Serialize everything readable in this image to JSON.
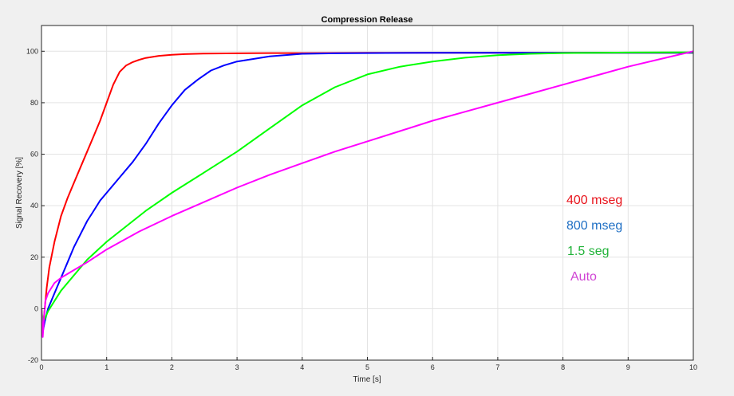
{
  "chart_data": {
    "type": "line",
    "title": "Compression Release",
    "xlabel": "Time [s]",
    "ylabel": "Signal Recovery [%]",
    "xlim": [
      0,
      10
    ],
    "ylim": [
      -20,
      110
    ],
    "xticks": [
      0,
      1,
      2,
      3,
      4,
      5,
      6,
      7,
      8,
      9,
      10
    ],
    "yticks": [
      -20,
      0,
      20,
      40,
      60,
      80,
      100
    ],
    "xtick_labels": [
      "0",
      "1",
      "2",
      "3",
      "4",
      "5",
      "6",
      "7",
      "8",
      "9",
      "10"
    ],
    "ytick_labels": [
      "-20",
      "0",
      "20",
      "40",
      "60",
      "80",
      "100"
    ],
    "grid": true,
    "legend_position": "right, inside plot area (text labels)",
    "series": [
      {
        "name": "400 mseg",
        "color": "#ff0000",
        "label_color": "#e8141c",
        "x": [
          0,
          0.02,
          0.05,
          0.08,
          0.12,
          0.2,
          0.3,
          0.4,
          0.5,
          0.6,
          0.7,
          0.8,
          0.9,
          1.0,
          1.1,
          1.2,
          1.3,
          1.4,
          1.5,
          1.6,
          1.8,
          2.0,
          2.2,
          2.5,
          3.0,
          3.5,
          4.0,
          5.0,
          6.0,
          7.0,
          8.0,
          9.0,
          10.0
        ],
        "y": [
          0,
          -8,
          0,
          8,
          16,
          26,
          36,
          43,
          49,
          55,
          61,
          67,
          73,
          80,
          87,
          92,
          94.5,
          95.8,
          96.7,
          97.4,
          98.2,
          98.6,
          98.9,
          99.1,
          99.2,
          99.3,
          99.3,
          99.4,
          99.4,
          99.4,
          99.4,
          99.4,
          99.4
        ]
      },
      {
        "name": "800 mseg",
        "color": "#0000ff",
        "label_color": "#1f6fc4",
        "x": [
          0,
          0.02,
          0.05,
          0.1,
          0.2,
          0.3,
          0.4,
          0.5,
          0.6,
          0.7,
          0.8,
          0.9,
          1.0,
          1.2,
          1.4,
          1.6,
          1.8,
          2.0,
          2.2,
          2.4,
          2.6,
          2.8,
          3.0,
          3.5,
          4.0,
          4.5,
          5.0,
          6.0,
          7.0,
          8.0,
          9.0,
          10.0
        ],
        "y": [
          0,
          -9,
          -5,
          0,
          6,
          12,
          18,
          24,
          29,
          34,
          38,
          42,
          45,
          51,
          57,
          64,
          72,
          79,
          85,
          89,
          92.5,
          94.5,
          96,
          98,
          99,
          99.2,
          99.3,
          99.4,
          99.4,
          99.4,
          99.4,
          99.4
        ]
      },
      {
        "name": "1.5 seg",
        "color": "#00ff00",
        "label_color": "#22b33a",
        "x": [
          0,
          0.02,
          0.05,
          0.1,
          0.2,
          0.3,
          0.5,
          0.7,
          1.0,
          1.3,
          1.6,
          2.0,
          2.5,
          3.0,
          3.5,
          4.0,
          4.5,
          5.0,
          5.5,
          6.0,
          6.5,
          7.0,
          7.5,
          8.0,
          9.0,
          10.0
        ],
        "y": [
          0,
          -5,
          -4,
          -1,
          3,
          7,
          13,
          19,
          26,
          32,
          38,
          45,
          53,
          61,
          70,
          79,
          86,
          91,
          94,
          96,
          97.5,
          98.5,
          99,
          99.3,
          99.5,
          99.6
        ]
      },
      {
        "name": "Auto",
        "color": "#ff00ff",
        "label_color": "#d045d4",
        "x": [
          0,
          0.02,
          0.04,
          0.06,
          0.1,
          0.15,
          0.2,
          0.3,
          0.5,
          0.7,
          1.0,
          1.5,
          2.0,
          2.5,
          3.0,
          3.5,
          4.0,
          4.5,
          5.0,
          5.5,
          6.0,
          6.5,
          7.0,
          7.5,
          8.0,
          8.5,
          9.0,
          9.5,
          10.0
        ],
        "y": [
          0,
          -11,
          -3,
          3,
          6,
          8,
          10,
          12,
          15,
          18,
          23,
          30,
          36,
          41.5,
          47,
          52,
          56.5,
          61,
          65,
          69,
          73,
          76.5,
          80,
          83.5,
          87,
          90.5,
          94,
          97,
          100
        ]
      }
    ]
  }
}
